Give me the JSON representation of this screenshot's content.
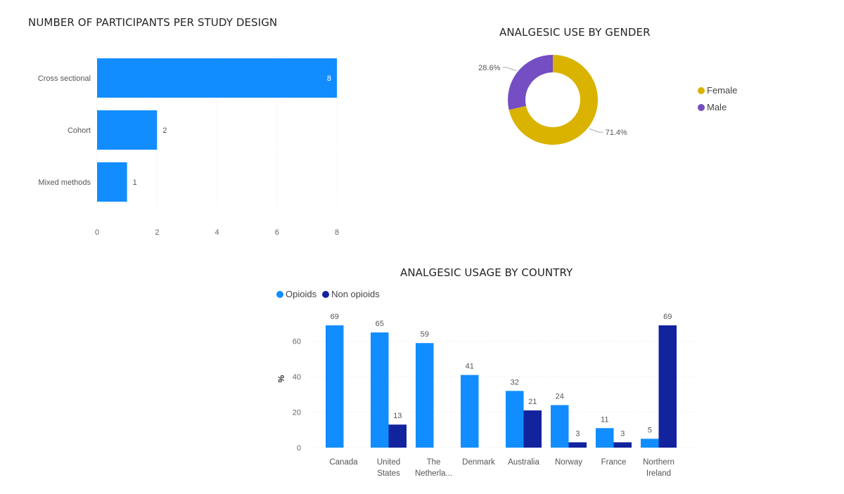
{
  "chart_data": [
    {
      "type": "bar",
      "orientation": "horizontal",
      "title": "NUMBER OF PARTICIPANTS PER STUDY DESIGN",
      "categories": [
        "Cross sectional",
        "Cohort",
        "Mixed methods"
      ],
      "values": [
        8,
        2,
        1
      ],
      "xticks": [
        "0",
        "2",
        "4",
        "6",
        "8"
      ],
      "xlim": [
        0,
        8
      ],
      "grid": true,
      "color": "#118dff"
    },
    {
      "type": "pie",
      "donut": true,
      "title": "ANALGESIC USE BY GENDER",
      "slices": [
        {
          "name": "Female",
          "value": 71.4,
          "label": "71.4%",
          "color": "#d9b300"
        },
        {
          "name": "Male",
          "value": 28.6,
          "label": "28.6%",
          "color": "#744ec2"
        }
      ],
      "legend_position": "right"
    },
    {
      "type": "bar",
      "title": "ANALGESIC USAGE BY COUNTRY",
      "ylabel": "%",
      "categories": [
        [
          "Canada"
        ],
        [
          "United",
          "States"
        ],
        [
          "The",
          "Netherla..."
        ],
        [
          "Denmark"
        ],
        [
          "Australia"
        ],
        [
          "Norway"
        ],
        [
          "France"
        ],
        [
          "Northern",
          "Ireland"
        ]
      ],
      "series": [
        {
          "name": "Opioids",
          "color": "#118dff",
          "values": [
            69,
            65,
            59,
            41,
            32,
            24,
            11,
            5
          ]
        },
        {
          "name": "Non opioids",
          "color": "#12239e",
          "values": [
            null,
            13,
            null,
            null,
            21,
            3,
            3,
            69
          ]
        }
      ],
      "yticks": [
        "0",
        "20",
        "40",
        "60"
      ],
      "ylim": [
        0,
        69
      ],
      "grid": true,
      "legend_position": "top-left"
    }
  ]
}
